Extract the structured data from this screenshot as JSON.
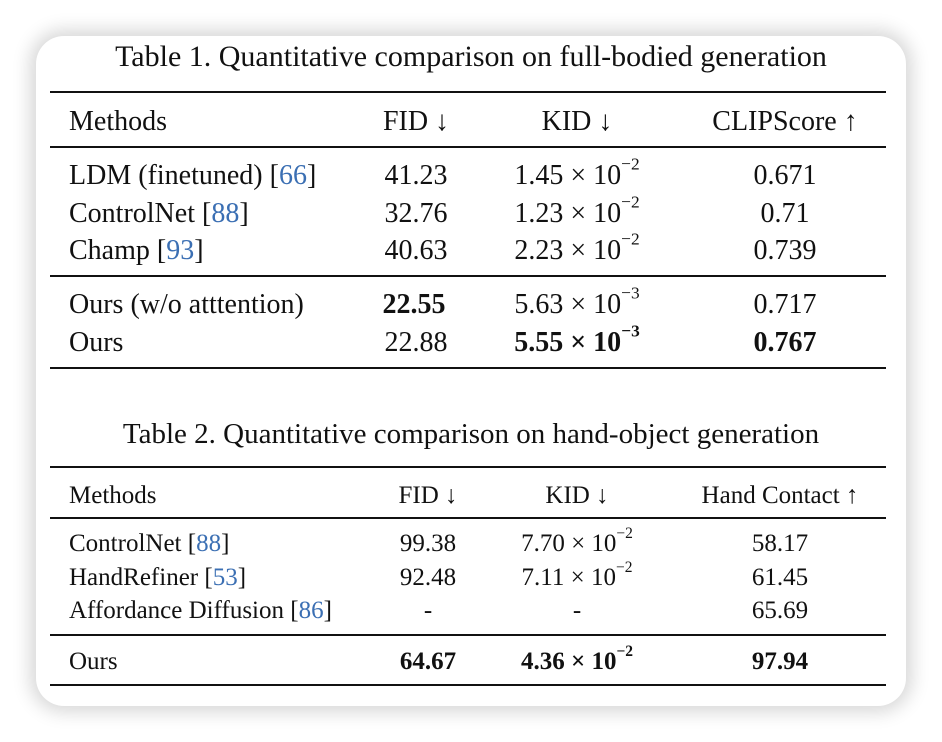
{
  "table1": {
    "caption": "Table 1. Quantitative comparison on full-bodied generation",
    "headers": [
      "Methods",
      "FID ↓",
      "KID ↓",
      "CLIPScore ↑"
    ],
    "rows": [
      {
        "method": "LDM (finetuned) [",
        "cite": "66",
        "close": "]",
        "fid": "41.23",
        "kid_mant": "1.45 × 10",
        "kid_exp": "−2",
        "clip": "0.671"
      },
      {
        "method": "ControlNet [",
        "cite": "88",
        "close": "]",
        "fid": "32.76",
        "kid_mant": "1.23 × 10",
        "kid_exp": "−2",
        "clip": "0.71"
      },
      {
        "method": "Champ [",
        "cite": "93",
        "close": "]",
        "fid": "40.63",
        "kid_mant": "2.23 × 10",
        "kid_exp": "−2",
        "clip": "0.739"
      },
      {
        "method": "Ours (w/o atttention)",
        "fid": "22.55",
        "kid_mant": "5.63 × 10",
        "kid_exp": "−3",
        "clip": "0.717"
      },
      {
        "method": "Ours",
        "fid": "22.88",
        "kid_mant": "5.55 × 10",
        "kid_exp": "−3",
        "clip": "0.767"
      }
    ]
  },
  "table2": {
    "caption": "Table 2. Quantitative comparison on hand-object generation",
    "headers": [
      "Methods",
      "FID ↓",
      "KID ↓",
      "Hand Contact ↑"
    ],
    "rows": [
      {
        "method": "ControlNet [",
        "cite": "88",
        "close": "]",
        "fid": "99.38",
        "kid_mant": "7.70 × 10",
        "kid_exp": "−2",
        "contact": "58.17"
      },
      {
        "method": "HandRefiner [",
        "cite": "53",
        "close": "]",
        "fid": "92.48",
        "kid_mant": "7.11 × 10",
        "kid_exp": "−2",
        "contact": "61.45"
      },
      {
        "method": "Affordance Diffusion [",
        "cite": "86",
        "close": "]",
        "fid": "-",
        "kid": "-",
        "contact": "65.69"
      },
      {
        "method": "Ours",
        "fid": "64.67",
        "kid_mant": "4.36 × 10",
        "kid_exp": "−2",
        "contact": "97.94"
      }
    ]
  },
  "colors": {
    "citation": "#3b6fb3",
    "rule": "#111111"
  }
}
